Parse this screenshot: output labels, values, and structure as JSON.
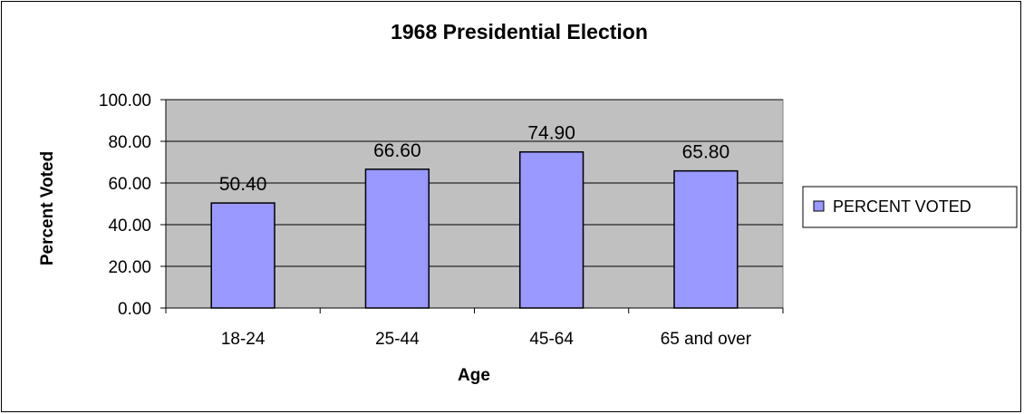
{
  "chart_data": {
    "type": "bar",
    "title": "1968 Presidential Election",
    "xlabel": "Age",
    "ylabel": "Percent Voted",
    "categories": [
      "18-24",
      "25-44",
      "45-64",
      "65 and over"
    ],
    "series": [
      {
        "name": "PERCENT VOTED",
        "values": [
          50.4,
          66.6,
          74.9,
          65.8
        ],
        "data_labels": [
          "50.40",
          "66.60",
          "74.90",
          "65.80"
        ]
      }
    ],
    "ylim": [
      0,
      100
    ],
    "y_ticks": [
      0,
      20,
      40,
      60,
      80,
      100
    ],
    "y_tick_labels": [
      "0.00",
      "20.00",
      "40.00",
      "60.00",
      "80.00",
      "100.00"
    ],
    "grid": true,
    "legend_position": "right",
    "colors": {
      "bar_fill": "#9999ff",
      "plot_background": "#c0c0c0",
      "gridline": "#000000"
    }
  }
}
